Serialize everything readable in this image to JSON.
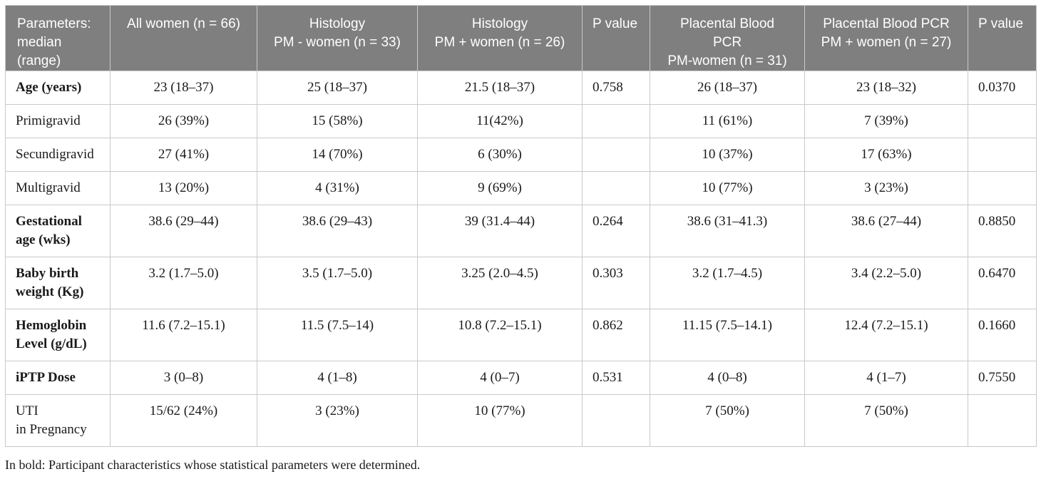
{
  "table": {
    "headers": [
      "Parameters:\nmedian\n(range)",
      "All women (n = 66)",
      "Histology\nPM - women (n = 33)",
      "Histology\nPM + women (n = 26)",
      "P value",
      "Placental Blood\nPCR\nPM-women (n = 31)",
      "Placental Blood PCR\nPM + women (n = 27)",
      "P value"
    ],
    "rows": [
      {
        "label": "Age (years)",
        "cells": [
          "23 (18–37)",
          "25 (18–37)",
          "21.5 (18–37)",
          "0.758",
          "26 (18–37)",
          "23 (18–32)",
          "0.0370"
        ]
      },
      {
        "label": "Primigravid",
        "cells": [
          "26 (39%)",
          "15 (58%)",
          "11(42%)",
          "",
          "11 (61%)",
          "7 (39%)",
          ""
        ]
      },
      {
        "label": "Secundigravid",
        "cells": [
          "27 (41%)",
          "14 (70%)",
          "6 (30%)",
          "",
          "10 (37%)",
          "17 (63%)",
          ""
        ]
      },
      {
        "label": "Multigravid",
        "cells": [
          "13 (20%)",
          "4 (31%)",
          "9 (69%)",
          "",
          "10 (77%)",
          "3 (23%)",
          ""
        ]
      },
      {
        "label": "Gestational\nage (wks)",
        "cells": [
          "38.6 (29–44)",
          "38.6 (29–43)",
          "39 (31.4–44)",
          "0.264",
          "38.6 (31–41.3)",
          "38.6 (27–44)",
          "0.8850"
        ]
      },
      {
        "label": "Baby birth\nweight (Kg)",
        "cells": [
          "3.2 (1.7–5.0)",
          "3.5 (1.7–5.0)",
          "3.25 (2.0–4.5)",
          "0.303",
          "3.2 (1.7–4.5)",
          "3.4 (2.2–5.0)",
          "0.6470"
        ]
      },
      {
        "label": "Hemoglobin\nLevel (g/dL)",
        "cells": [
          "11.6 (7.2–15.1)",
          "11.5 (7.5–14)",
          "10.8 (7.2–15.1)",
          "0.862",
          "11.15 (7.5–14.1)",
          "12.4 (7.2–15.1)",
          "0.1660"
        ]
      },
      {
        "label": "iPTP Dose",
        "cells": [
          "3 (0–8)",
          "4 (1–8)",
          "4 (0–7)",
          "0.531",
          "4 (0–8)",
          "4 (1–7)",
          "0.7550"
        ]
      },
      {
        "label": "UTI\nin Pregnancy",
        "cells": [
          "15/62 (24%)",
          "3 (23%)",
          "10 (77%)",
          "",
          "7 (50%)",
          "7 (50%)",
          ""
        ]
      }
    ]
  },
  "footnote": "In bold: Participant characteristics whose statistical parameters were determined."
}
